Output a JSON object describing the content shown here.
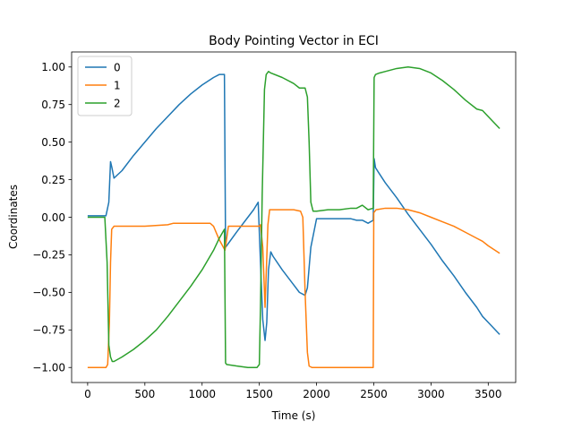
{
  "chart_data": {
    "type": "line",
    "title": "Body Pointing Vector in ECI",
    "xlabel": "Time (s)",
    "ylabel": "Coordinates",
    "xlim": [
      -140,
      3740
    ],
    "ylim": [
      -1.1,
      1.1
    ],
    "xticks": [
      0,
      500,
      1000,
      1500,
      2000,
      2500,
      3000,
      3500
    ],
    "yticks": [
      -1.0,
      -0.75,
      -0.5,
      -0.25,
      0.0,
      0.25,
      0.5,
      0.75,
      1.0
    ],
    "xtick_labels": [
      "0",
      "500",
      "1000",
      "1500",
      "2000",
      "2500",
      "3000",
      "3500"
    ],
    "ytick_labels": [
      "−1.00",
      "−0.75",
      "−0.50",
      "−0.25",
      "0.00",
      "0.25",
      "0.50",
      "0.75",
      "1.00"
    ],
    "grid": false,
    "legend_position": "top-left",
    "series": [
      {
        "name": "0",
        "color": "#1f77b4",
        "x": [
          0,
          160,
          185,
          200,
          212,
          230,
          300,
          400,
          500,
          600,
          700,
          800,
          900,
          1000,
          1100,
          1150,
          1195,
          1205,
          1300,
          1400,
          1450,
          1490,
          1510,
          1530,
          1550,
          1565,
          1580,
          1600,
          1620,
          1700,
          1800,
          1850,
          1900,
          1920,
          1950,
          2000,
          2100,
          2200,
          2300,
          2350,
          2400,
          2450,
          2495,
          2503,
          2515,
          2540,
          2600,
          2700,
          2800,
          2900,
          3000,
          3100,
          3200,
          3300,
          3400,
          3450,
          3500,
          3600
        ],
        "y": [
          0.01,
          0.01,
          0.1,
          0.37,
          0.33,
          0.26,
          0.31,
          0.41,
          0.5,
          0.59,
          0.67,
          0.75,
          0.82,
          0.88,
          0.93,
          0.95,
          0.95,
          -0.2,
          -0.1,
          0.0,
          0.05,
          0.1,
          -0.3,
          -0.68,
          -0.82,
          -0.7,
          -0.35,
          -0.23,
          -0.26,
          -0.35,
          -0.45,
          -0.5,
          -0.52,
          -0.47,
          -0.2,
          -0.01,
          -0.01,
          -0.01,
          -0.01,
          -0.02,
          -0.02,
          -0.04,
          -0.02,
          0.39,
          0.33,
          0.3,
          0.23,
          0.13,
          0.02,
          -0.08,
          -0.18,
          -0.29,
          -0.39,
          -0.5,
          -0.6,
          -0.66,
          -0.7,
          -0.78
        ]
      },
      {
        "name": "1",
        "color": "#ff7f0e",
        "x": [
          0,
          160,
          175,
          190,
          200,
          210,
          230,
          300,
          500,
          700,
          750,
          800,
          900,
          1000,
          1070,
          1100,
          1150,
          1200,
          1230,
          1300,
          1400,
          1500,
          1510,
          1530,
          1550,
          1575,
          1590,
          1600,
          1700,
          1800,
          1860,
          1880,
          1900,
          1920,
          1935,
          1960,
          2000,
          2200,
          2400,
          2495,
          2500,
          2510,
          2520,
          2600,
          2700,
          2800,
          2900,
          3000,
          3100,
          3200,
          3300,
          3400,
          3450,
          3500,
          3600
        ],
        "y": [
          -1.0,
          -1.0,
          -0.98,
          -0.7,
          -0.3,
          -0.08,
          -0.06,
          -0.06,
          -0.06,
          -0.05,
          -0.04,
          -0.04,
          -0.04,
          -0.04,
          -0.04,
          -0.06,
          -0.15,
          -0.22,
          -0.06,
          -0.06,
          -0.06,
          -0.06,
          -0.05,
          -0.2,
          -0.6,
          -0.05,
          0.05,
          0.05,
          0.05,
          0.05,
          0.04,
          0.0,
          -0.5,
          -0.9,
          -0.99,
          -1.0,
          -1.0,
          -1.0,
          -1.0,
          -1.0,
          0.03,
          0.04,
          0.05,
          0.06,
          0.06,
          0.05,
          0.03,
          0.0,
          -0.03,
          -0.06,
          -0.1,
          -0.14,
          -0.16,
          -0.19,
          -0.24
        ]
      },
      {
        "name": "2",
        "color": "#2ca02c",
        "x": [
          0,
          150,
          170,
          185,
          200,
          215,
          230,
          300,
          400,
          500,
          600,
          700,
          800,
          900,
          1000,
          1100,
          1150,
          1195,
          1205,
          1215,
          1300,
          1400,
          1450,
          1480,
          1500,
          1510,
          1525,
          1545,
          1560,
          1580,
          1600,
          1700,
          1800,
          1850,
          1900,
          1920,
          1935,
          1950,
          1970,
          2000,
          2100,
          2200,
          2300,
          2350,
          2400,
          2450,
          2495,
          2503,
          2515,
          2550,
          2600,
          2700,
          2800,
          2900,
          3000,
          3100,
          3200,
          3300,
          3400,
          3450,
          3500,
          3600
        ],
        "y": [
          0.0,
          0.0,
          -0.3,
          -0.85,
          -0.93,
          -0.96,
          -0.96,
          -0.93,
          -0.88,
          -0.82,
          -0.75,
          -0.66,
          -0.56,
          -0.46,
          -0.35,
          -0.22,
          -0.14,
          -0.08,
          -0.97,
          -0.98,
          -0.99,
          -1.0,
          -1.0,
          -1.0,
          -0.98,
          -0.6,
          0.15,
          0.85,
          0.95,
          0.97,
          0.96,
          0.93,
          0.89,
          0.86,
          0.86,
          0.8,
          0.5,
          0.1,
          0.04,
          0.04,
          0.05,
          0.05,
          0.06,
          0.06,
          0.08,
          0.05,
          0.06,
          0.93,
          0.95,
          0.96,
          0.97,
          0.99,
          1.0,
          0.99,
          0.96,
          0.91,
          0.85,
          0.78,
          0.72,
          0.71,
          0.67,
          0.59
        ]
      }
    ]
  }
}
